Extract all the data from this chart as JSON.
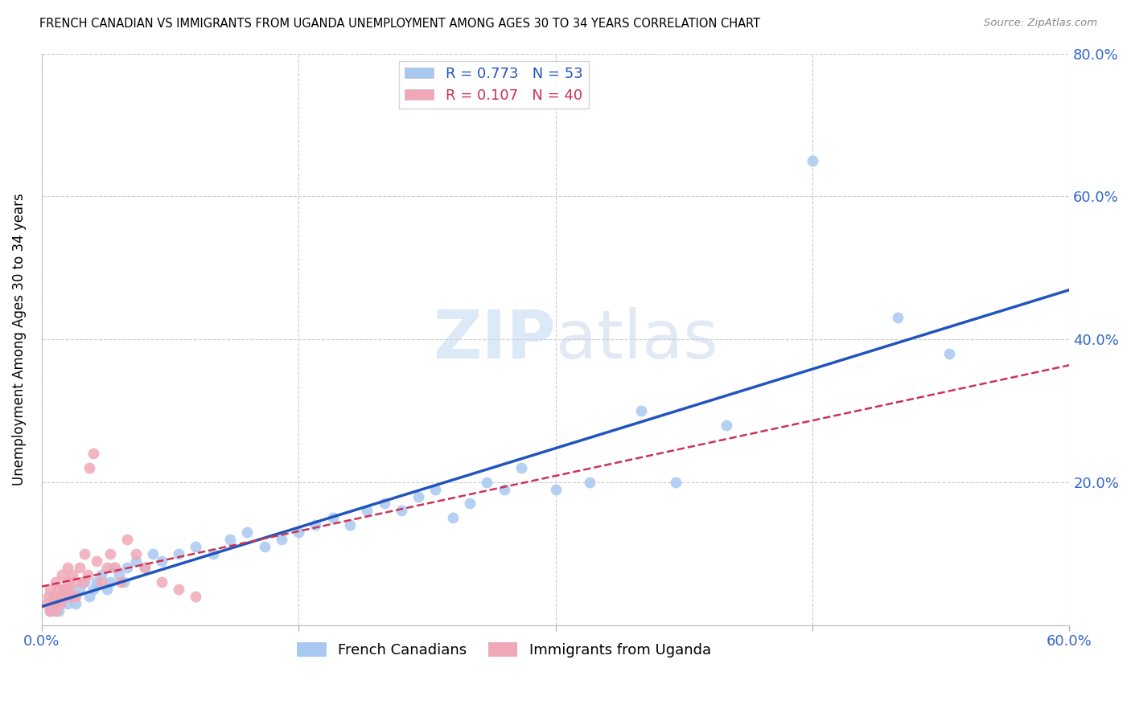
{
  "title": "FRENCH CANADIAN VS IMMIGRANTS FROM UGANDA UNEMPLOYMENT AMONG AGES 30 TO 34 YEARS CORRELATION CHART",
  "source": "Source: ZipAtlas.com",
  "ylabel": "Unemployment Among Ages 30 to 34 years",
  "xlim": [
    0.0,
    0.6
  ],
  "ylim": [
    0.0,
    0.8
  ],
  "xticks": [
    0.0,
    0.15,
    0.3,
    0.45,
    0.6
  ],
  "yticks": [
    0.0,
    0.2,
    0.4,
    0.6,
    0.8
  ],
  "blue_R": 0.773,
  "blue_N": 53,
  "pink_R": 0.107,
  "pink_N": 40,
  "blue_color": "#a8c8f0",
  "blue_line_color": "#2255bb",
  "pink_color": "#f0a8b8",
  "pink_line_color": "#cc3355",
  "blue_scatter_x": [
    0.005,
    0.007,
    0.01,
    0.012,
    0.015,
    0.015,
    0.018,
    0.02,
    0.022,
    0.025,
    0.028,
    0.03,
    0.032,
    0.035,
    0.038,
    0.04,
    0.042,
    0.045,
    0.048,
    0.05,
    0.055,
    0.06,
    0.065,
    0.07,
    0.08,
    0.09,
    0.1,
    0.11,
    0.12,
    0.13,
    0.14,
    0.15,
    0.16,
    0.17,
    0.18,
    0.19,
    0.2,
    0.21,
    0.22,
    0.23,
    0.24,
    0.25,
    0.26,
    0.27,
    0.28,
    0.3,
    0.32,
    0.35,
    0.37,
    0.4,
    0.45,
    0.5,
    0.53
  ],
  "blue_scatter_y": [
    0.02,
    0.03,
    0.02,
    0.04,
    0.03,
    0.05,
    0.04,
    0.03,
    0.05,
    0.06,
    0.04,
    0.05,
    0.06,
    0.07,
    0.05,
    0.06,
    0.08,
    0.07,
    0.06,
    0.08,
    0.09,
    0.08,
    0.1,
    0.09,
    0.1,
    0.11,
    0.1,
    0.12,
    0.13,
    0.11,
    0.12,
    0.13,
    0.14,
    0.15,
    0.14,
    0.16,
    0.17,
    0.16,
    0.18,
    0.19,
    0.15,
    0.17,
    0.2,
    0.19,
    0.22,
    0.19,
    0.2,
    0.3,
    0.2,
    0.28,
    0.65,
    0.43,
    0.38
  ],
  "pink_scatter_x": [
    0.003,
    0.004,
    0.005,
    0.005,
    0.006,
    0.007,
    0.008,
    0.008,
    0.009,
    0.01,
    0.01,
    0.011,
    0.012,
    0.013,
    0.014,
    0.015,
    0.015,
    0.016,
    0.017,
    0.018,
    0.019,
    0.02,
    0.022,
    0.024,
    0.025,
    0.027,
    0.028,
    0.03,
    0.032,
    0.035,
    0.038,
    0.04,
    0.043,
    0.046,
    0.05,
    0.055,
    0.06,
    0.07,
    0.08,
    0.09
  ],
  "pink_scatter_y": [
    0.03,
    0.04,
    0.02,
    0.05,
    0.03,
    0.04,
    0.02,
    0.06,
    0.03,
    0.04,
    0.05,
    0.03,
    0.07,
    0.05,
    0.04,
    0.06,
    0.08,
    0.05,
    0.04,
    0.07,
    0.06,
    0.04,
    0.08,
    0.06,
    0.1,
    0.07,
    0.22,
    0.24,
    0.09,
    0.06,
    0.08,
    0.1,
    0.08,
    0.06,
    0.12,
    0.1,
    0.08,
    0.06,
    0.05,
    0.04
  ]
}
